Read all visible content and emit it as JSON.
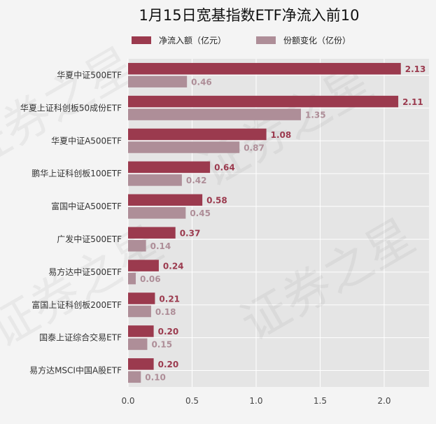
{
  "chart_data": {
    "type": "bar",
    "orientation": "horizontal",
    "title": "1月15日宽基指数ETF净流入前10",
    "categories": [
      "华夏中证500ETF",
      "华夏上证科创板50成份ETF",
      "华夏中证A500ETF",
      "鹏华上证科创板100ETF",
      "富国中证A500ETF",
      "广发中证500ETF",
      "易方达中证500ETF",
      "富国上证科创板200ETF",
      "国泰上证综合交易ETF",
      "易方达MSCI中国A股ETF"
    ],
    "series": [
      {
        "name": "净流入额（亿元）",
        "color": "#9b3a4e",
        "values": [
          2.13,
          2.11,
          1.08,
          0.64,
          0.58,
          0.37,
          0.24,
          0.21,
          0.2,
          0.2
        ],
        "labels": [
          "2.13",
          "2.11",
          "1.08",
          "0.64",
          "0.58",
          "0.37",
          "0.24",
          "0.21",
          "0.20",
          "0.20"
        ]
      },
      {
        "name": "份额变化（亿份）",
        "color": "#ae8e98",
        "values": [
          0.46,
          1.35,
          0.87,
          0.42,
          0.45,
          0.14,
          0.06,
          0.18,
          0.15,
          0.1
        ],
        "labels": [
          "0.46",
          "1.35",
          "0.87",
          "0.42",
          "0.45",
          "0.14",
          "0.06",
          "0.18",
          "0.15",
          "0.10"
        ]
      }
    ],
    "xlim": [
      0,
      2.35
    ],
    "xticks": [
      0.0,
      0.5,
      1.0,
      1.5,
      2.0
    ],
    "xtick_labels": [
      "0.0",
      "0.5",
      "1.0",
      "1.5",
      "2.0"
    ],
    "grid": true,
    "legend_position": "top",
    "plot_background": "#e5e5e5",
    "page_background": "#f4f4f4"
  },
  "watermark": {
    "texts": [
      "证券之星",
      "证券之星",
      "证券之星",
      "证券之星"
    ]
  }
}
